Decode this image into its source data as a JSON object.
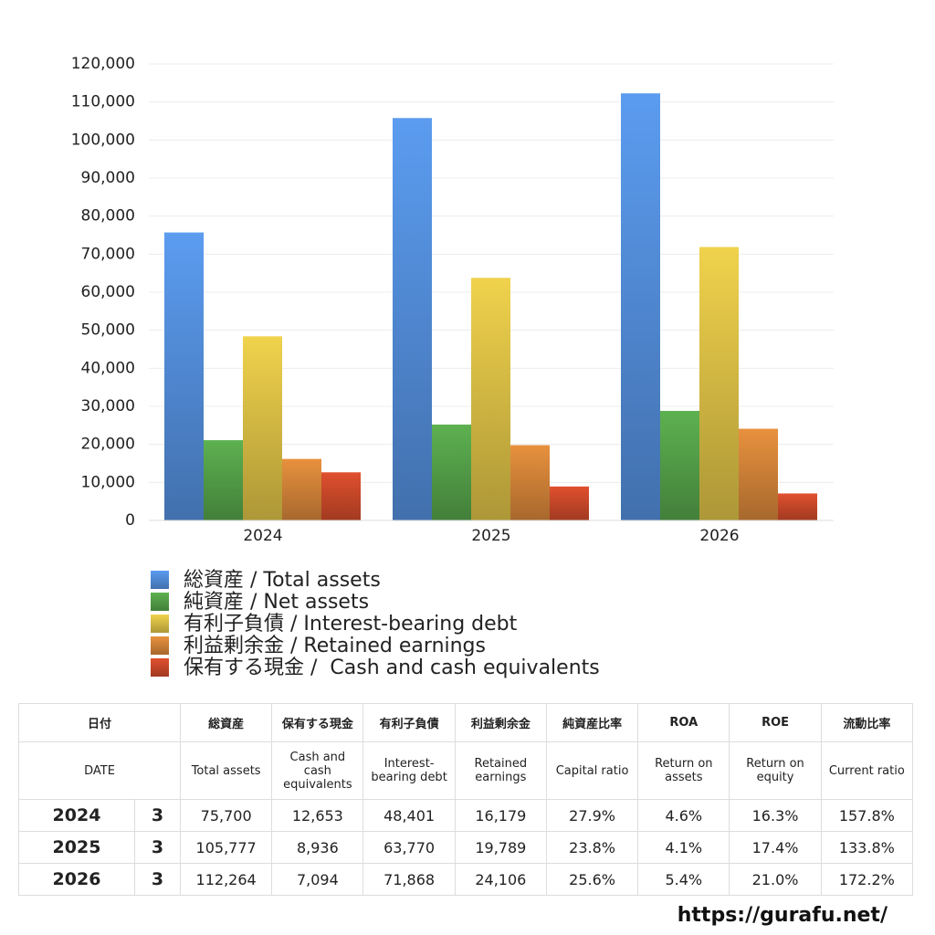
{
  "chart_data": {
    "type": "bar",
    "categories": [
      "2024",
      "2025",
      "2026"
    ],
    "series": [
      {
        "name": "総資産 / Total assets",
        "color": "#5b9cf0",
        "values": [
          75700,
          105777,
          112264
        ]
      },
      {
        "name": "純資産 / Net assets",
        "color": "#5db150",
        "values": [
          21100,
          25200,
          28800
        ]
      },
      {
        "name": "有利子負債 / Interest-bearing debt",
        "color": "#f0d24c",
        "values": [
          48401,
          63770,
          71868
        ]
      },
      {
        "name": "利益剰余金 / Retained earnings",
        "color": "#e8913e",
        "values": [
          16179,
          19789,
          24106
        ]
      },
      {
        "name": "保有する現金 /  Cash and cash equivalents",
        "color": "#e0502e",
        "values": [
          12653,
          8936,
          7094
        ]
      }
    ],
    "ylim": [
      0,
      120000
    ],
    "yticks": [
      0,
      {
        "value": 10000,
        "label": "10,000"
      },
      {
        "value": 20000,
        "label": "20,000"
      },
      {
        "value": 30000,
        "label": "30,000"
      },
      {
        "value": 40000,
        "label": "40,000"
      },
      {
        "value": 50000,
        "label": "50,000"
      },
      {
        "value": 60000,
        "label": "60,000"
      },
      {
        "value": 70000,
        "label": "70,000"
      },
      {
        "value": 80000,
        "label": "80,000"
      },
      {
        "value": 90000,
        "label": "90,000"
      },
      {
        "value": 100000,
        "label": "100,000"
      },
      {
        "value": 110000,
        "label": "110,000"
      },
      {
        "value": 120000,
        "label": "120,000"
      }
    ],
    "grid": true
  },
  "table": {
    "header_ja": [
      "日付",
      "総資産",
      "保有する現金",
      "有利子負債",
      "利益剰余金",
      "純資産比率",
      "ROA",
      "ROE",
      "流動比率"
    ],
    "header_en": [
      "DATE",
      "Total assets",
      "Cash and cash equivalents",
      "Interest-bearing debt",
      "Retained earnings",
      "Capital ratio",
      "Return on assets",
      "Return on equity",
      "Current ratio"
    ],
    "rows": [
      [
        "2024",
        "3",
        "75,700",
        "12,653",
        "48,401",
        "16,179",
        "27.9%",
        "4.6%",
        "16.3%",
        "157.8%"
      ],
      [
        "2025",
        "3",
        "105,777",
        "8,936",
        "63,770",
        "19,789",
        "23.8%",
        "4.1%",
        "17.4%",
        "133.8%"
      ],
      [
        "2026",
        "3",
        "112,264",
        "7,094",
        "71,868",
        "24,106",
        "25.6%",
        "5.4%",
        "21.0%",
        "172.2%"
      ]
    ]
  },
  "footer": {
    "url": "https://gurafu.net/"
  }
}
